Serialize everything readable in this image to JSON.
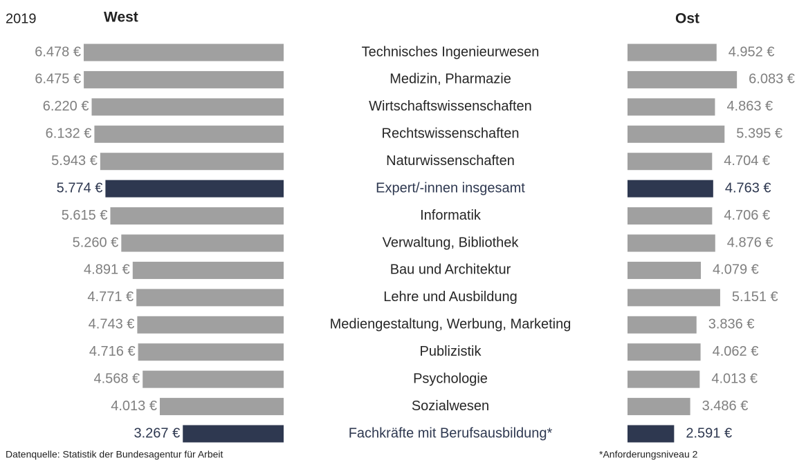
{
  "chart_data": {
    "type": "butterfly",
    "year": "2019",
    "source": "Datenquelle: Statistik der Bundesagentur für Arbeit",
    "note": "*Anforderungsniveau 2",
    "categories": [
      "Technisches Ingenieurwesen",
      "Medizin, Pharmazie",
      "Wirtschaftswissenschaften",
      "Rechtswissenschaften",
      "Naturwissenschaften",
      "Expert/-innen insgesamt",
      "Informatik",
      "Verwaltung, Bibliothek",
      "Bau und Architektur",
      "Lehre und Ausbildung",
      "Mediengestaltung, Werbung, Marketing",
      "Publizistik",
      "Psychologie",
      "Sozialwesen",
      "Fachkräfte mit Berufsausbildung*"
    ],
    "series": [
      {
        "name": "West",
        "xlim": [
          0,
          6500
        ],
        "values": [
          6478,
          6475,
          6220,
          6132,
          5943,
          5774,
          5615,
          5260,
          4891,
          4771,
          4743,
          4716,
          4568,
          4013,
          3267
        ],
        "value_labels": [
          "6.478 €",
          "6.475 €",
          "6.220 €",
          "6.132 €",
          "5.943 €",
          "5.774 €",
          "5.615 €",
          "5.260 €",
          "4.891 €",
          "4.771 €",
          "4.743 €",
          "4.716 €",
          "4.568 €",
          "4.013 €",
          "3.267 €"
        ],
        "colors": [
          "#a0a0a0",
          "#a0a0a0",
          "#a0a0a0",
          "#a0a0a0",
          "#a0a0a0",
          "#2e3850",
          "#a0a0a0",
          "#a0a0a0",
          "#a0a0a0",
          "#a0a0a0",
          "#a0a0a0",
          "#a0a0a0",
          "#a0a0a0",
          "#a0a0a0",
          "#2e3850"
        ]
      },
      {
        "name": "Ost",
        "xlim": [
          0,
          6500
        ],
        "values": [
          4952,
          6083,
          4863,
          5395,
          4704,
          4763,
          4706,
          4876,
          4079,
          5151,
          3836,
          4062,
          4013,
          3486,
          2591
        ],
        "value_labels": [
          "4.952 €",
          "6.083 €",
          "4.863 €",
          "5.395 €",
          "4.704 €",
          "4.763 €",
          "4.706 €",
          "4.876 €",
          "4.079 €",
          "5.151 €",
          "3.836 €",
          "4.062 €",
          "4.013 €",
          "3.486 €",
          "2.591 €"
        ],
        "colors": [
          "#a0a0a0",
          "#a0a0a0",
          "#a0a0a0",
          "#a0a0a0",
          "#a0a0a0",
          "#2e3850",
          "#a0a0a0",
          "#a0a0a0",
          "#a0a0a0",
          "#a0a0a0",
          "#a0a0a0",
          "#a0a0a0",
          "#a0a0a0",
          "#a0a0a0",
          "#2e3850"
        ]
      }
    ]
  }
}
